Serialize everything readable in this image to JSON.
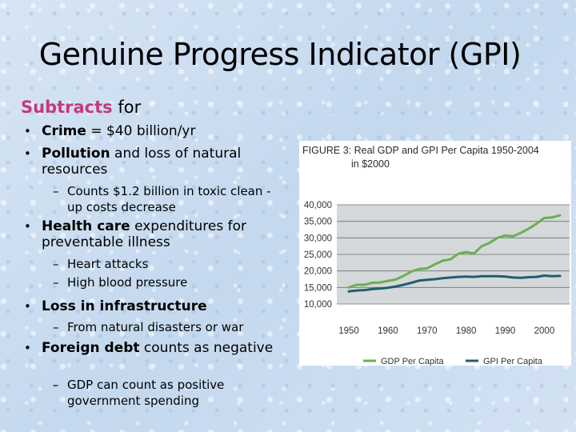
{
  "slide": {
    "title": "Genuine Progress Indicator (GPI)",
    "subtitle_emph": "Subtracts",
    "subtitle_rest": " for",
    "bullets": [
      {
        "bold": "Crime",
        "text": " = $40 billion/yr"
      },
      {
        "bold": "Pollution",
        "text": " and loss of natural resources"
      },
      {
        "sub": "Counts  $1.2 billion in toxic clean -up costs decrease"
      },
      {
        "bold": "Health care",
        "text": " expenditures for preventable illness"
      },
      {
        "sub": "Heart attacks"
      },
      {
        "sub": "High blood pressure"
      },
      {
        "bold": "Loss in infrastructure",
        "text": ""
      },
      {
        "sub": "From natural disasters or war"
      },
      {
        "bold": "Foreign debt",
        "text": " counts as negative"
      },
      {
        "sub": "GDP can count as positive government spending"
      }
    ]
  },
  "colors": {
    "accent_pink": "#c53a78",
    "gdp": "#6ab04c",
    "gpi": "#1f5f6e",
    "plot_bg": "#d5d8da",
    "grid": "#707070"
  },
  "chart_data": {
    "type": "line",
    "title_line1": "FIGURE 3: Real GDP and GPI Per Capita 1950-2004",
    "title_line2": "in $2000",
    "xlabel": "",
    "ylabel": "",
    "xlim": [
      1950,
      2004
    ],
    "ylim": [
      10000,
      40000
    ],
    "y_ticks": [
      40000,
      35000,
      30000,
      25000,
      20000,
      15000,
      10000
    ],
    "y_tick_labels": [
      "40,000",
      "35,000",
      "30,000",
      "25,000",
      "20,000",
      "15,000",
      "10,000"
    ],
    "x_ticks": [
      1950,
      1960,
      1970,
      1980,
      1990,
      2000
    ],
    "x_tick_labels": [
      "1950",
      "1960",
      "1970",
      "1980",
      "1990",
      "2000"
    ],
    "legend": [
      {
        "name": "GDP Per Capita",
        "color": "#6ab04c"
      },
      {
        "name": "GPI Per Capita",
        "color": "#1f5f6e"
      }
    ],
    "series": [
      {
        "name": "GDP Per Capita",
        "x": [
          1950,
          1952,
          1954,
          1956,
          1958,
          1960,
          1962,
          1964,
          1966,
          1968,
          1970,
          1972,
          1974,
          1976,
          1978,
          1980,
          1982,
          1984,
          1986,
          1988,
          1990,
          1992,
          1994,
          1996,
          1998,
          2000,
          2002,
          2004
        ],
        "values": [
          15000,
          15800,
          15800,
          16400,
          16500,
          17000,
          17400,
          18500,
          19800,
          20600,
          20800,
          22000,
          23100,
          23500,
          25200,
          25700,
          25300,
          27500,
          28500,
          30000,
          30700,
          30500,
          31500,
          32800,
          34300,
          36000,
          36200,
          36800
        ]
      },
      {
        "name": "GPI Per Capita",
        "x": [
          1950,
          1952,
          1954,
          1956,
          1958,
          1960,
          1962,
          1964,
          1966,
          1968,
          1970,
          1972,
          1974,
          1976,
          1978,
          1980,
          1982,
          1984,
          1986,
          1988,
          1990,
          1992,
          1994,
          1996,
          1998,
          2000,
          2002,
          2004
        ],
        "values": [
          13800,
          14100,
          14200,
          14500,
          14700,
          14900,
          15300,
          15800,
          16400,
          17100,
          17300,
          17500,
          17800,
          18000,
          18200,
          18300,
          18200,
          18400,
          18400,
          18400,
          18300,
          18000,
          17900,
          18100,
          18200,
          18600,
          18400,
          18500
        ]
      }
    ]
  }
}
